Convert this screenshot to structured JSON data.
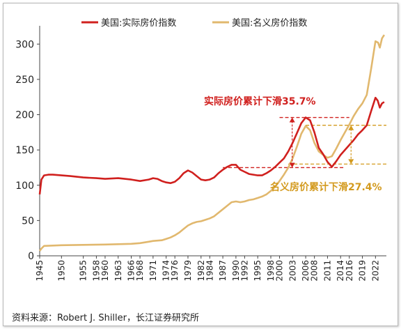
{
  "chart_data": {
    "type": "line",
    "title": "",
    "xlabel": "",
    "ylabel": "",
    "ylim": [
      0,
      320
    ],
    "xlim": [
      1945,
      2024.5
    ],
    "yticks": [
      0,
      50,
      100,
      150,
      200,
      250,
      300
    ],
    "xticks": [
      1945,
      1950,
      1955,
      1958,
      1960,
      1963,
      1966,
      1968,
      1971,
      1974,
      1976,
      1979,
      1982,
      1984,
      1987,
      1990,
      1992,
      1995,
      1998,
      2000,
      2003,
      2006,
      2008,
      2011,
      2014,
      2016,
      2019,
      2022
    ],
    "legend_position": "top",
    "series": [
      {
        "name": "美国:实际房价指数",
        "color": "#d0201e",
        "points": [
          [
            1945,
            87
          ],
          [
            1945.4,
            108
          ],
          [
            1946,
            114
          ],
          [
            1947,
            115
          ],
          [
            1948,
            115
          ],
          [
            1950,
            114
          ],
          [
            1952,
            113
          ],
          [
            1955,
            111
          ],
          [
            1958,
            110
          ],
          [
            1960,
            109
          ],
          [
            1963,
            110
          ],
          [
            1966,
            108
          ],
          [
            1968,
            106
          ],
          [
            1970,
            108
          ],
          [
            1971,
            110
          ],
          [
            1972,
            109
          ],
          [
            1973,
            106
          ],
          [
            1974,
            104
          ],
          [
            1975,
            103
          ],
          [
            1976,
            105
          ],
          [
            1977,
            110
          ],
          [
            1978,
            117
          ],
          [
            1979,
            121
          ],
          [
            1980,
            118
          ],
          [
            1981,
            113
          ],
          [
            1982,
            108
          ],
          [
            1983,
            107
          ],
          [
            1984,
            108
          ],
          [
            1985,
            111
          ],
          [
            1986,
            117
          ],
          [
            1987,
            122
          ],
          [
            1988,
            126
          ],
          [
            1989,
            129
          ],
          [
            1990,
            129
          ],
          [
            1991,
            122
          ],
          [
            1992,
            119
          ],
          [
            1993,
            116
          ],
          [
            1994,
            115
          ],
          [
            1995,
            114
          ],
          [
            1996,
            114
          ],
          [
            1997,
            117
          ],
          [
            1998,
            121
          ],
          [
            1999,
            126
          ],
          [
            2000,
            132
          ],
          [
            2001,
            138
          ],
          [
            2002,
            148
          ],
          [
            2003,
            160
          ],
          [
            2004,
            174
          ],
          [
            2005,
            188
          ],
          [
            2006,
            196
          ],
          [
            2007,
            192
          ],
          [
            2008,
            175
          ],
          [
            2009,
            153
          ],
          [
            2010,
            144
          ],
          [
            2011,
            133
          ],
          [
            2012,
            126
          ],
          [
            2013,
            134
          ],
          [
            2014,
            143
          ],
          [
            2015,
            150
          ],
          [
            2016,
            157
          ],
          [
            2017,
            164
          ],
          [
            2018,
            172
          ],
          [
            2019,
            178
          ],
          [
            2020,
            185
          ],
          [
            2021,
            205
          ],
          [
            2022,
            224
          ],
          [
            2022.5,
            220
          ],
          [
            2023,
            210
          ],
          [
            2023.5,
            216
          ],
          [
            2024,
            218
          ]
        ]
      },
      {
        "name": "美国:名义房价指数",
        "color": "#e1b86e",
        "points": [
          [
            1945,
            7
          ],
          [
            1945.5,
            11
          ],
          [
            1946,
            14
          ],
          [
            1950,
            15
          ],
          [
            1955,
            15.5
          ],
          [
            1960,
            16
          ],
          [
            1963,
            16.5
          ],
          [
            1966,
            17
          ],
          [
            1968,
            18
          ],
          [
            1970,
            20
          ],
          [
            1971,
            21
          ],
          [
            1973,
            22
          ],
          [
            1974,
            24
          ],
          [
            1975,
            26
          ],
          [
            1976,
            29
          ],
          [
            1977,
            33
          ],
          [
            1978,
            38
          ],
          [
            1979,
            43
          ],
          [
            1980,
            46
          ],
          [
            1981,
            48
          ],
          [
            1982,
            49
          ],
          [
            1983,
            51
          ],
          [
            1984,
            53
          ],
          [
            1985,
            56
          ],
          [
            1986,
            61
          ],
          [
            1987,
            66
          ],
          [
            1988,
            71
          ],
          [
            1989,
            76
          ],
          [
            1990,
            77
          ],
          [
            1991,
            76
          ],
          [
            1992,
            77
          ],
          [
            1993,
            79
          ],
          [
            1994,
            80
          ],
          [
            1995,
            82
          ],
          [
            1996,
            84
          ],
          [
            1997,
            87
          ],
          [
            1998,
            92
          ],
          [
            1999,
            98
          ],
          [
            2000,
            106
          ],
          [
            2001,
            115
          ],
          [
            2002,
            125
          ],
          [
            2003,
            138
          ],
          [
            2004,
            155
          ],
          [
            2005,
            173
          ],
          [
            2006,
            184
          ],
          [
            2007,
            178
          ],
          [
            2008,
            160
          ],
          [
            2009,
            148
          ],
          [
            2010,
            143
          ],
          [
            2011,
            139
          ],
          [
            2012,
            141
          ],
          [
            2013,
            152
          ],
          [
            2014,
            164
          ],
          [
            2015,
            175
          ],
          [
            2016,
            186
          ],
          [
            2017,
            198
          ],
          [
            2018,
            208
          ],
          [
            2019,
            216
          ],
          [
            2020,
            228
          ],
          [
            2021,
            265
          ],
          [
            2022,
            304
          ],
          [
            2022.6,
            302
          ],
          [
            2023,
            295
          ],
          [
            2023.5,
            308
          ],
          [
            2024,
            313
          ]
        ]
      }
    ],
    "annotations": [
      {
        "text": "实际房价累计下滑35.7%",
        "color": "#d0201e"
      },
      {
        "text": "名义房价累计下滑27.4%",
        "color": "#d39a1e"
      }
    ],
    "reference_lines": [
      {
        "color": "#d0201e",
        "y": 196,
        "x_from": 2000,
        "x_to": 2016
      },
      {
        "color": "#d0201e",
        "y": 125,
        "x_from": 1987,
        "x_to": 2015
      },
      {
        "color": "#d39a1e",
        "y": 185,
        "x_from": 2006,
        "x_to": 2024.5
      },
      {
        "color": "#d39a1e",
        "y": 130,
        "x_from": 2002,
        "x_to": 2024.5
      }
    ]
  },
  "source_note": "资料来源：Robert J. Shiller，长江证券研究所"
}
